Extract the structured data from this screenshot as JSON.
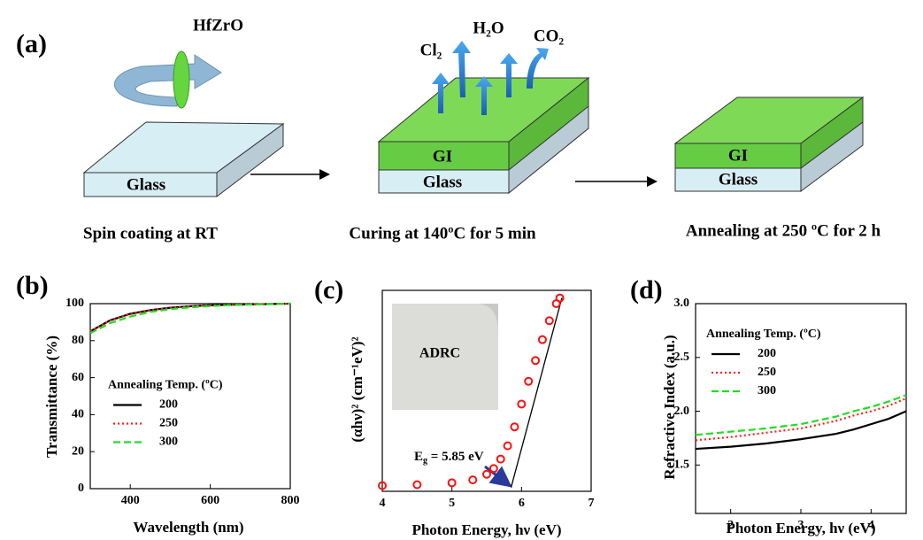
{
  "panel_a": {
    "label": "(a)",
    "precursor": "HfZrO",
    "gases": [
      "Cl₂",
      "H₂O",
      "CO₂"
    ],
    "steps": [
      {
        "layers": [
          "Glass"
        ],
        "caption": "Spin coating at RT"
      },
      {
        "layers": [
          "GI",
          "Glass"
        ],
        "caption": "Curing at 140ºC for 5 min"
      },
      {
        "layers": [
          "GI",
          "Glass"
        ],
        "caption": "Annealing at 250 ºC for 2 h"
      }
    ]
  },
  "chart_data": [
    {
      "type": "line",
      "panel_label": "(b)",
      "x_label": "Wavelength (nm)",
      "y_label": "Transmittance (%)",
      "legend_title": "Annealing Temp. (ºC)",
      "legend": "center-left",
      "x": [
        300,
        350,
        400,
        450,
        500,
        550,
        600,
        650,
        700,
        750,
        800
      ],
      "series": [
        {
          "name": "200",
          "color": "#000000",
          "linestyle": "solid",
          "values": [
            85,
            91,
            94.5,
            96.5,
            97.8,
            98.6,
            99.1,
            99.4,
            99.6,
            99.8,
            100
          ]
        },
        {
          "name": "250",
          "color": "#ff2020",
          "linestyle": "dotted",
          "values": [
            85,
            91,
            94.3,
            96.4,
            97.7,
            98.5,
            99,
            99.4,
            99.6,
            99.8,
            100
          ]
        },
        {
          "name": "300",
          "color": "#22dd22",
          "linestyle": "dashed",
          "values": [
            84,
            89.5,
            93,
            95.5,
            97,
            98,
            98.7,
            99.2,
            99.5,
            99.7,
            100
          ]
        }
      ],
      "xlim": [
        300,
        800
      ],
      "xticks": [
        400,
        600,
        800
      ],
      "ylim": [
        0,
        100
      ],
      "yticks": [
        0,
        20,
        40,
        60,
        80,
        100
      ]
    },
    {
      "type": "scatter",
      "panel_label": "(c)",
      "x_label": "Photon Energy, hν (eV)",
      "y_label": "(αhν)² (cm⁻¹eV)²",
      "inset_text": "ADRC",
      "annotation": {
        "symbol": "E",
        "subscript": "g",
        "text": " = 5.85 eV"
      },
      "x": [
        4,
        4.5,
        5,
        5.3,
        5.5,
        5.6,
        5.7,
        5.8,
        5.9,
        6.0,
        6.1,
        6.2,
        6.3,
        6.4,
        6.5,
        6.55
      ],
      "series": [
        {
          "color": "#ff1010",
          "values": [
            1,
            1.5,
            2.5,
            4,
            7,
            10,
            15,
            22,
            32,
            44,
            56,
            67,
            78,
            88,
            97,
            100
          ]
        }
      ],
      "fit": {
        "color": "#000000",
        "x": [
          5.85,
          6.58
        ],
        "values": [
          0,
          100
        ]
      },
      "xlim": [
        4,
        7
      ],
      "xticks": [
        4,
        5,
        6,
        7
      ],
      "ylim": [
        -2,
        104
      ]
    },
    {
      "type": "line",
      "panel_label": "(d)",
      "x_label": "Photon Energy, hν (eV)",
      "y_label": "Refractive Index (a.u.)",
      "legend_title": "Annealing Temp. (ºC)",
      "legend": "upper-left",
      "x": [
        1.5,
        2,
        2.5,
        3,
        3.5,
        3.75,
        4,
        4.25,
        4.5
      ],
      "series": [
        {
          "name": "200",
          "color": "#000000",
          "linestyle": "solid",
          "values": [
            1.65,
            1.67,
            1.7,
            1.74,
            1.79,
            1.83,
            1.88,
            1.93,
            2.0
          ]
        },
        {
          "name": "250",
          "color": "#ff2020",
          "linestyle": "dotted",
          "values": [
            1.73,
            1.76,
            1.8,
            1.84,
            1.91,
            1.96,
            2.0,
            2.05,
            2.12
          ]
        },
        {
          "name": "300",
          "color": "#22dd22",
          "linestyle": "dashed",
          "values": [
            1.78,
            1.81,
            1.84,
            1.88,
            1.95,
            2.0,
            2.04,
            2.09,
            2.15
          ]
        }
      ],
      "xlim": [
        1.5,
        4.5
      ],
      "xticks": [
        2,
        3,
        4
      ],
      "ylim": [
        1.05,
        3.0
      ],
      "yticks": [
        1.5,
        {
          "value": 2,
          "label": "2.0"
        },
        2.5,
        {
          "value": 3,
          "label": "3.0"
        }
      ]
    }
  ]
}
